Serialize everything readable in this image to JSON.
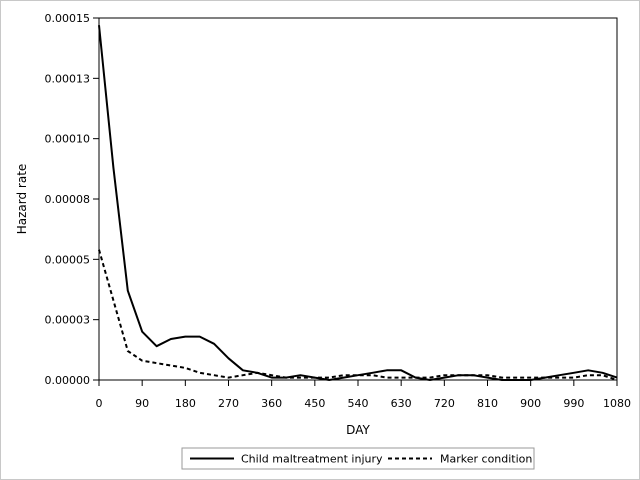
{
  "chart_data": {
    "type": "line",
    "title": "",
    "xlabel": "DAY",
    "ylabel": "Hazard rate",
    "xlim": [
      0,
      1080
    ],
    "ylim": [
      0,
      0.00015
    ],
    "x_ticks": [
      0,
      90,
      180,
      270,
      360,
      450,
      540,
      630,
      720,
      810,
      900,
      990,
      1080
    ],
    "x_tick_labels": [
      "0",
      "90",
      "180",
      "270",
      "360",
      "450",
      "540",
      "630",
      "720",
      "810",
      "900",
      "990",
      "1080"
    ],
    "y_ticks": [
      0,
      2.5e-05,
      5e-05,
      7.5e-05,
      0.0001,
      0.000125,
      0.00015
    ],
    "y_tick_labels": [
      "0.00000",
      "0.00003",
      "0.00005",
      "0.00008",
      "0.00010",
      "0.00013",
      "0.00015"
    ],
    "grid": false,
    "legend_position": "bottom",
    "series": [
      {
        "name": "Child maltreatment injury",
        "style": "solid",
        "color": "#000000",
        "x": [
          0,
          30,
          60,
          90,
          120,
          150,
          180,
          210,
          240,
          270,
          300,
          330,
          360,
          390,
          420,
          450,
          480,
          510,
          540,
          570,
          600,
          630,
          660,
          690,
          720,
          750,
          780,
          810,
          840,
          870,
          900,
          930,
          960,
          990,
          1020,
          1050,
          1080
        ],
        "y": [
          0.000147,
          8.8e-05,
          3.7e-05,
          2e-05,
          1.4e-05,
          1.7e-05,
          1.8e-05,
          1.8e-05,
          1.5e-05,
          9e-06,
          4e-06,
          3e-06,
          1e-06,
          1e-06,
          2e-06,
          1e-06,
          0.0,
          1e-06,
          2e-06,
          3e-06,
          4e-06,
          4e-06,
          1e-06,
          0.0,
          1e-06,
          2e-06,
          2e-06,
          1e-06,
          0.0,
          0.0,
          0.0,
          1e-06,
          2e-06,
          3e-06,
          4e-06,
          3e-06,
          1e-06
        ]
      },
      {
        "name": "Marker condition",
        "style": "dashed",
        "color": "#000000",
        "x": [
          0,
          30,
          60,
          90,
          120,
          150,
          180,
          210,
          240,
          270,
          300,
          330,
          360,
          390,
          420,
          450,
          480,
          510,
          540,
          570,
          600,
          630,
          660,
          690,
          720,
          750,
          780,
          810,
          840,
          870,
          900,
          930,
          960,
          990,
          1020,
          1050,
          1080
        ],
        "y": [
          5.4e-05,
          3.3e-05,
          1.2e-05,
          8e-06,
          7e-06,
          6e-06,
          5e-06,
          3e-06,
          2e-06,
          1e-06,
          2e-06,
          3e-06,
          2e-06,
          1e-06,
          1e-06,
          1e-06,
          1e-06,
          2e-06,
          2e-06,
          2e-06,
          1e-06,
          1e-06,
          1e-06,
          1e-06,
          2e-06,
          2e-06,
          2e-06,
          2e-06,
          1e-06,
          1e-06,
          1e-06,
          1e-06,
          1e-06,
          1e-06,
          2e-06,
          2e-06,
          0.0
        ]
      }
    ]
  }
}
